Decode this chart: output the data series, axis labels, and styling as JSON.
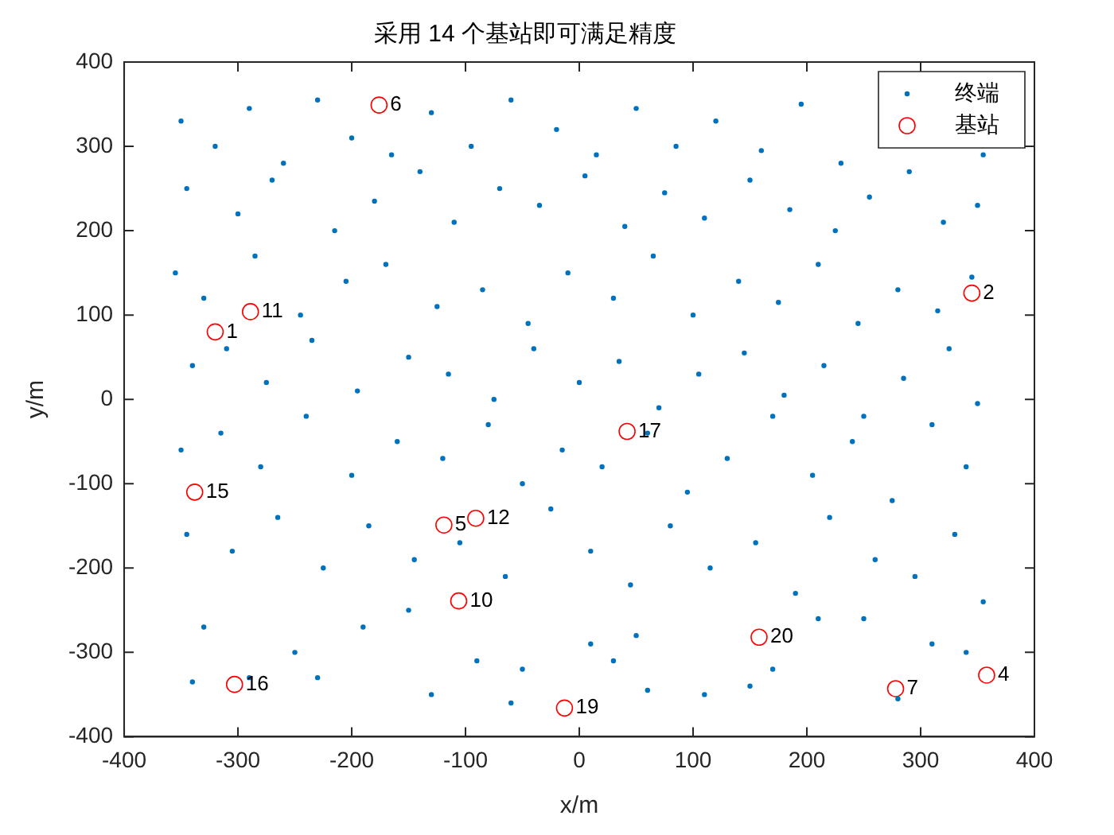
{
  "chart_data": {
    "type": "scatter",
    "title": "采用 14 个基站即可满足精度",
    "xlabel": "x/m",
    "ylabel": "y/m",
    "xlim": [
      -400,
      400
    ],
    "ylim": [
      -400,
      400
    ],
    "xticks": [
      -400,
      -300,
      -200,
      -100,
      0,
      100,
      200,
      300,
      400
    ],
    "yticks": [
      -400,
      -300,
      -200,
      -100,
      0,
      100,
      200,
      300,
      400
    ],
    "grid": false,
    "legend": "top right",
    "marker": "circle",
    "series": [
      {
        "name": "终端",
        "color": "#0072bd",
        "x": [
          -350,
          -320,
          -290,
          -260,
          -230,
          -200,
          -165,
          -130,
          -95,
          -60,
          -20,
          15,
          50,
          85,
          120,
          160,
          195,
          230,
          265,
          300,
          335,
          355,
          -345,
          -300,
          -270,
          -215,
          -180,
          -140,
          -110,
          -70,
          -35,
          5,
          40,
          75,
          110,
          150,
          185,
          225,
          255,
          290,
          320,
          350,
          -355,
          -330,
          -285,
          -245,
          -205,
          -170,
          -125,
          -85,
          -45,
          -10,
          30,
          65,
          100,
          140,
          175,
          210,
          245,
          280,
          315,
          345,
          -340,
          -310,
          -275,
          -235,
          -195,
          -150,
          -115,
          -75,
          -40,
          0,
          35,
          70,
          105,
          145,
          180,
          215,
          250,
          285,
          325,
          350,
          -350,
          -315,
          -280,
          -240,
          -200,
          -160,
          -120,
          -80,
          -50,
          -15,
          20,
          60,
          95,
          130,
          170,
          205,
          240,
          275,
          310,
          340,
          -345,
          -305,
          -265,
          -225,
          -185,
          -145,
          -105,
          -65,
          -25,
          10,
          45,
          80,
          115,
          155,
          190,
          220,
          260,
          295,
          330,
          355,
          -330,
          -250,
          -150,
          -50,
          50,
          150,
          250,
          340,
          -290,
          -190,
          -90,
          10,
          110,
          210,
          310,
          -230,
          -60,
          60,
          170,
          280,
          -340,
          -130,
          30
        ],
        "values": [
          330,
          300,
          345,
          280,
          355,
          310,
          290,
          340,
          300,
          355,
          320,
          290,
          345,
          300,
          330,
          295,
          350,
          280,
          325,
          null,
          null,
          290,
          250,
          220,
          260,
          200,
          235,
          270,
          210,
          250,
          230,
          265,
          205,
          245,
          215,
          260,
          225,
          200,
          240,
          270,
          210,
          230,
          150,
          120,
          170,
          100,
          140,
          160,
          110,
          130,
          90,
          150,
          120,
          170,
          100,
          140,
          115,
          160,
          90,
          130,
          105,
          145,
          40,
          60,
          20,
          70,
          10,
          50,
          30,
          0,
          60,
          20,
          45,
          -10,
          30,
          55,
          5,
          40,
          -20,
          25,
          60,
          -5,
          -60,
          -40,
          -80,
          -20,
          -90,
          -50,
          -70,
          -30,
          -100,
          -60,
          -80,
          -40,
          -110,
          -70,
          -20,
          -90,
          -50,
          -120,
          -30,
          -80,
          -160,
          -180,
          -140,
          -200,
          -150,
          -190,
          -170,
          -210,
          -130,
          -180,
          -220,
          -150,
          -200,
          -170,
          -230,
          -140,
          -190,
          -210,
          -160,
          -240,
          -270,
          -300,
          -250,
          -320,
          -280,
          -340,
          -260,
          -300,
          -330,
          -270,
          -310,
          -290,
          -350,
          -260,
          -290,
          -330,
          -360,
          -345,
          -320,
          -355,
          -335,
          -350,
          -310
        ]
      },
      {
        "name": "基站",
        "color": "#ff0000",
        "x": [
          -320,
          345,
          358,
          -119,
          -176,
          278,
          -106,
          -289,
          -91,
          -338,
          -303,
          42,
          -13,
          158
        ],
        "values": [
          80,
          126,
          -327,
          -149,
          349,
          -343,
          -239,
          104,
          -141,
          -110,
          -338,
          -38,
          -366,
          -282
        ]
      }
    ],
    "annotations": [
      {
        "text": "1",
        "x": -320,
        "y": 80
      },
      {
        "text": "2",
        "x": 345,
        "y": 126
      },
      {
        "text": "4",
        "x": 358,
        "y": -327
      },
      {
        "text": "5",
        "x": -119,
        "y": -149
      },
      {
        "text": "6",
        "x": -176,
        "y": 349
      },
      {
        "text": "7",
        "x": 278,
        "y": -343
      },
      {
        "text": "10",
        "x": -106,
        "y": -239
      },
      {
        "text": "11",
        "x": -289,
        "y": 104
      },
      {
        "text": "12",
        "x": -91,
        "y": -141
      },
      {
        "text": "15",
        "x": -338,
        "y": -110
      },
      {
        "text": "16",
        "x": -303,
        "y": -338
      },
      {
        "text": "17",
        "x": 42,
        "y": -38
      },
      {
        "text": "19",
        "x": -13,
        "y": -366
      },
      {
        "text": "20",
        "x": 158,
        "y": -282
      }
    ]
  }
}
